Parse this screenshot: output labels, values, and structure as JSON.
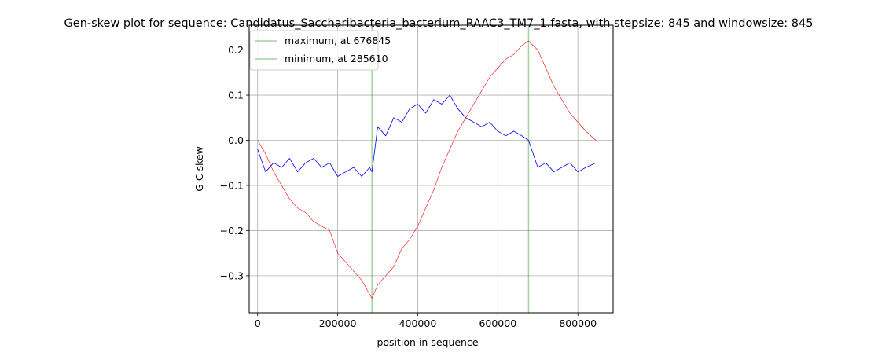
{
  "chart_data": {
    "type": "line",
    "title": "Gen-skew plot for sequence: Candidatus_Saccharibacteria_bacterium_RAAC3_TM7_1.fasta, with stepsize: 845 and windowsize: 845",
    "xlabel": "position in sequence",
    "ylabel": "G C skew",
    "xlim": [
      -21000,
      888000
    ],
    "ylim": [
      -0.382,
      0.255
    ],
    "xticks": [
      0,
      200000,
      400000,
      600000,
      800000
    ],
    "xtick_labels": [
      "0",
      "200000",
      "400000",
      "600000",
      "800000"
    ],
    "yticks": [
      -0.3,
      -0.2,
      -0.1,
      0.0,
      0.1,
      0.2
    ],
    "ytick_labels": [
      "−0.3",
      "−0.2",
      "−0.1",
      "0.0",
      "0.1",
      "0.2"
    ],
    "grid": true,
    "legend": {
      "position": "top-left",
      "entries": [
        {
          "label": "maximum, at 676845",
          "color": "#2ca02c"
        },
        {
          "label": "minimum, at 285610",
          "color": "#2ca02c"
        }
      ]
    },
    "vlines": [
      {
        "x": 676845,
        "color": "#2ca02c"
      },
      {
        "x": 285610,
        "color": "#2ca02c"
      }
    ],
    "series": [
      {
        "color": "#0000ff",
        "x": [
          0,
          20000,
          40000,
          60000,
          80000,
          100000,
          120000,
          140000,
          160000,
          180000,
          200000,
          220000,
          240000,
          260000,
          280000,
          285610,
          300000,
          320000,
          340000,
          360000,
          380000,
          400000,
          420000,
          440000,
          460000,
          480000,
          500000,
          520000,
          540000,
          560000,
          580000,
          600000,
          620000,
          640000,
          660000,
          676845,
          700000,
          720000,
          740000,
          760000,
          780000,
          800000,
          820000,
          845000
        ],
        "values": [
          -0.02,
          -0.07,
          -0.05,
          -0.06,
          -0.04,
          -0.07,
          -0.05,
          -0.04,
          -0.06,
          -0.05,
          -0.08,
          -0.07,
          -0.06,
          -0.08,
          -0.06,
          -0.07,
          0.03,
          0.01,
          0.05,
          0.04,
          0.07,
          0.08,
          0.06,
          0.09,
          0.08,
          0.1,
          0.07,
          0.05,
          0.04,
          0.03,
          0.04,
          0.02,
          0.01,
          0.02,
          0.01,
          0.0,
          -0.06,
          -0.05,
          -0.07,
          -0.06,
          -0.05,
          -0.07,
          -0.06,
          -0.05
        ]
      },
      {
        "color": "#ff0000",
        "x": [
          0,
          20000,
          40000,
          60000,
          80000,
          100000,
          120000,
          140000,
          160000,
          180000,
          200000,
          220000,
          240000,
          260000,
          285610,
          300000,
          320000,
          340000,
          360000,
          380000,
          400000,
          420000,
          440000,
          460000,
          480000,
          500000,
          520000,
          540000,
          560000,
          580000,
          600000,
          620000,
          640000,
          660000,
          676845,
          700000,
          720000,
          740000,
          760000,
          780000,
          800000,
          820000,
          845000
        ],
        "values": [
          0.0,
          -0.03,
          -0.07,
          -0.1,
          -0.13,
          -0.15,
          -0.16,
          -0.18,
          -0.19,
          -0.2,
          -0.25,
          -0.27,
          -0.29,
          -0.31,
          -0.35,
          -0.32,
          -0.3,
          -0.28,
          -0.24,
          -0.22,
          -0.19,
          -0.15,
          -0.11,
          -0.06,
          -0.02,
          0.02,
          0.05,
          0.08,
          0.11,
          0.14,
          0.16,
          0.18,
          0.19,
          0.21,
          0.22,
          0.2,
          0.16,
          0.12,
          0.09,
          0.06,
          0.04,
          0.02,
          0.0
        ]
      }
    ]
  }
}
